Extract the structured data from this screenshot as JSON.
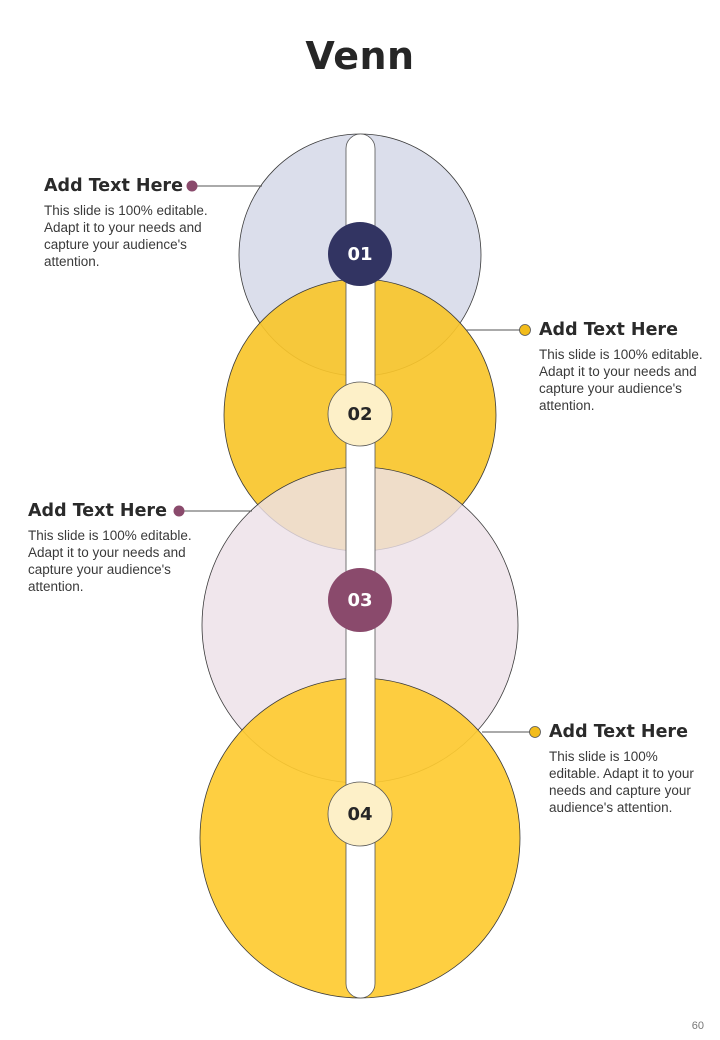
{
  "title": "Venn",
  "colors": {
    "circle1": "#D9DCEA",
    "circle2": "#F8C52B",
    "circle3": "#EDE0E8",
    "circle4": "#FECB31",
    "badge_navy": "#323462",
    "badge_plum": "#8A4A6C",
    "badge_cream": "#FDF0C8",
    "dot_plum": "#8A4A6C",
    "dot_gold": "#F2BC1B"
  },
  "items": [
    {
      "number": "01",
      "heading": "Add Text Here",
      "body": "This slide is 100% editable. Adapt it to your needs and capture your audience's attention."
    },
    {
      "number": "02",
      "heading": "Add Text Here",
      "body": "This slide is 100% editable. Adapt it to your needs and capture your audience's attention."
    },
    {
      "number": "03",
      "heading": "Add Text Here",
      "body": "This slide is 100% editable. Adapt it to your needs and capture your audience's attention."
    },
    {
      "number": "04",
      "heading": "Add Text Here",
      "body": "This slide is 100% editable. Adapt it to your needs and capture your audience's attention."
    }
  ],
  "page_number": "60"
}
